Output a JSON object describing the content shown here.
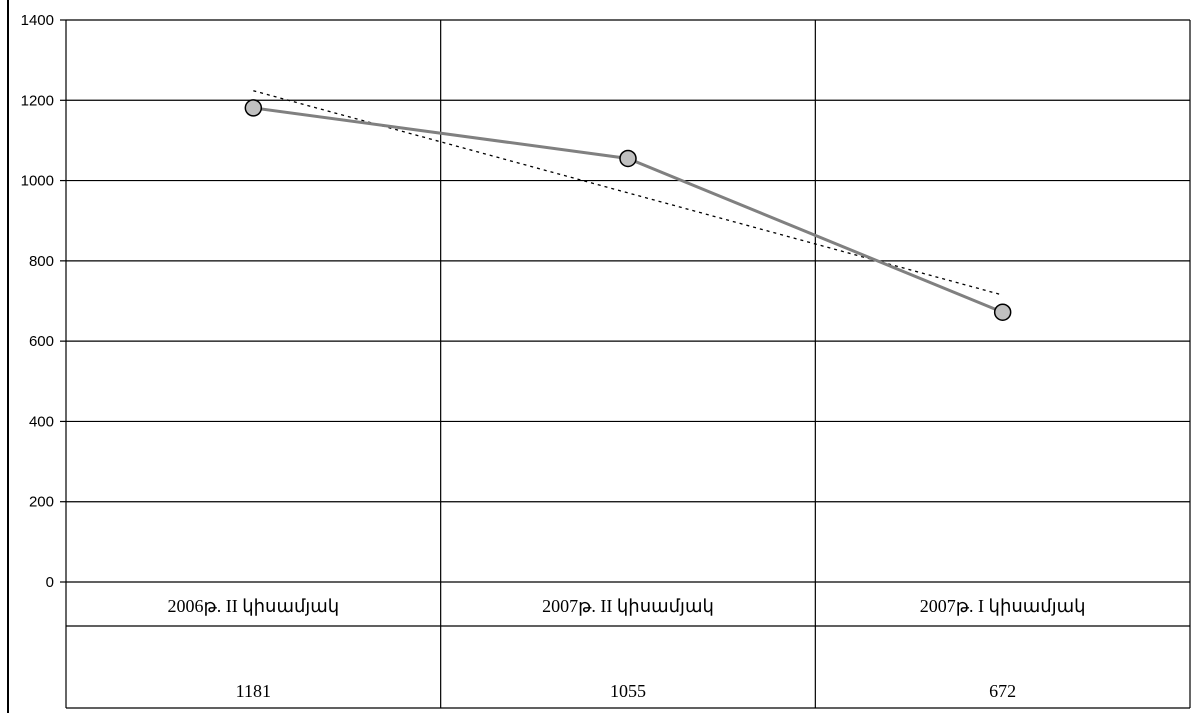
{
  "chart_data": {
    "type": "line",
    "title": "",
    "xlabel": "",
    "ylabel": "",
    "categories": [
      "2006թ. II կիսամյակ",
      "2007թ. II կիսամյակ",
      "2007թ. I կիսամյակ"
    ],
    "series": [
      {
        "values": [
          1181,
          1055,
          672
        ],
        "color": "#808080",
        "marker": "circle",
        "marker_fill": "#c0c0c0"
      }
    ],
    "trendline": {
      "type": "linear",
      "style": "dotted",
      "color": "#000000"
    },
    "data_table": true,
    "ylim": [
      0,
      1400
    ],
    "yticks": [
      "0",
      "200",
      "400",
      "600",
      "800",
      "1000",
      "1200",
      "1400"
    ],
    "grid": true,
    "legend": "none"
  }
}
